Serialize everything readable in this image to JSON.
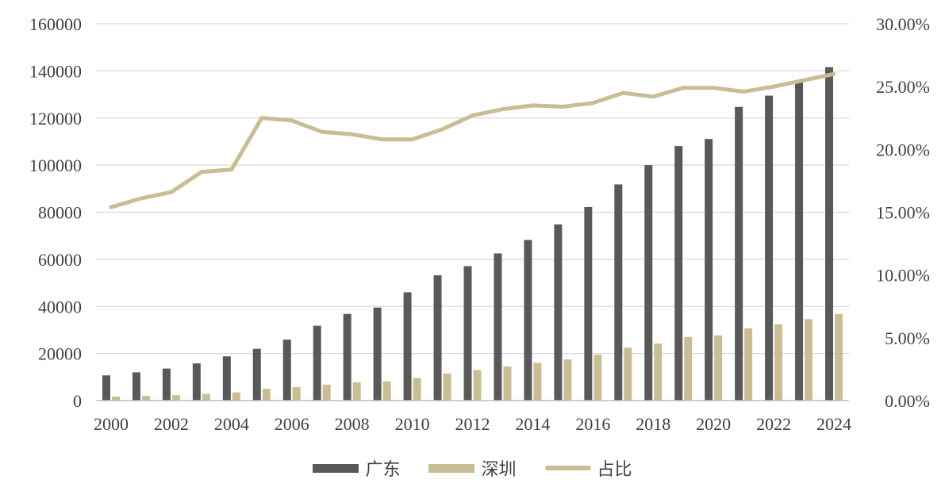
{
  "chart_data": {
    "type": "bar",
    "title": "",
    "xlabel": "",
    "ylabel": "",
    "categories": [
      "2000",
      "2001",
      "2002",
      "2003",
      "2004",
      "2005",
      "2006",
      "2007",
      "2008",
      "2009",
      "2010",
      "2011",
      "2012",
      "2013",
      "2014",
      "2015",
      "2016",
      "2017",
      "2018",
      "2019",
      "2020",
      "2021",
      "2022",
      "2023",
      "2024"
    ],
    "x_tick_labels": [
      "2000",
      "2002",
      "2004",
      "2006",
      "2008",
      "2010",
      "2012",
      "2014",
      "2016",
      "2018",
      "2020",
      "2022",
      "2024"
    ],
    "ylim": [
      0,
      160000
    ],
    "y_ticks": [
      0,
      20000,
      40000,
      60000,
      80000,
      100000,
      120000,
      140000,
      160000
    ],
    "y_tick_labels": [
      "0",
      "20000",
      "40000",
      "60000",
      "80000",
      "100000",
      "120000",
      "140000",
      "160000"
    ],
    "y2lim": [
      0,
      0.3
    ],
    "y2_ticks": [
      0,
      0.05,
      0.1,
      0.15,
      0.2,
      0.25,
      0.3
    ],
    "y2_tick_labels": [
      "0.00%",
      "5.00%",
      "10.00%",
      "15.00%",
      "20.00%",
      "25.00%",
      "30.00%"
    ],
    "grid": true,
    "legend_position": "bottom",
    "series": [
      {
        "name": "广东",
        "kind": "bar",
        "axis": "left",
        "color": "#595959",
        "values": [
          10700,
          12000,
          13600,
          15800,
          18800,
          22000,
          25900,
          31800,
          36800,
          39500,
          46000,
          53200,
          57100,
          62500,
          68200,
          74800,
          82200,
          91800,
          100000,
          108100,
          111100,
          124700,
          129500,
          135600,
          141600
        ]
      },
      {
        "name": "深圳",
        "kind": "bar",
        "axis": "left",
        "color": "#c9bd94",
        "values": [
          1700,
          2000,
          2300,
          2900,
          3500,
          5000,
          5800,
          6800,
          7800,
          8200,
          9600,
          11500,
          13000,
          14500,
          16000,
          17500,
          19500,
          22500,
          24200,
          27000,
          27700,
          30700,
          32400,
          34600,
          36800
        ]
      },
      {
        "name": "占比",
        "kind": "line",
        "axis": "right",
        "color": "#c9bd94",
        "values": [
          0.154,
          0.161,
          0.166,
          0.182,
          0.184,
          0.225,
          0.223,
          0.214,
          0.212,
          0.208,
          0.208,
          0.216,
          0.227,
          0.232,
          0.235,
          0.234,
          0.237,
          0.245,
          0.242,
          0.249,
          0.249,
          0.246,
          0.25,
          0.255,
          0.26
        ]
      }
    ]
  }
}
